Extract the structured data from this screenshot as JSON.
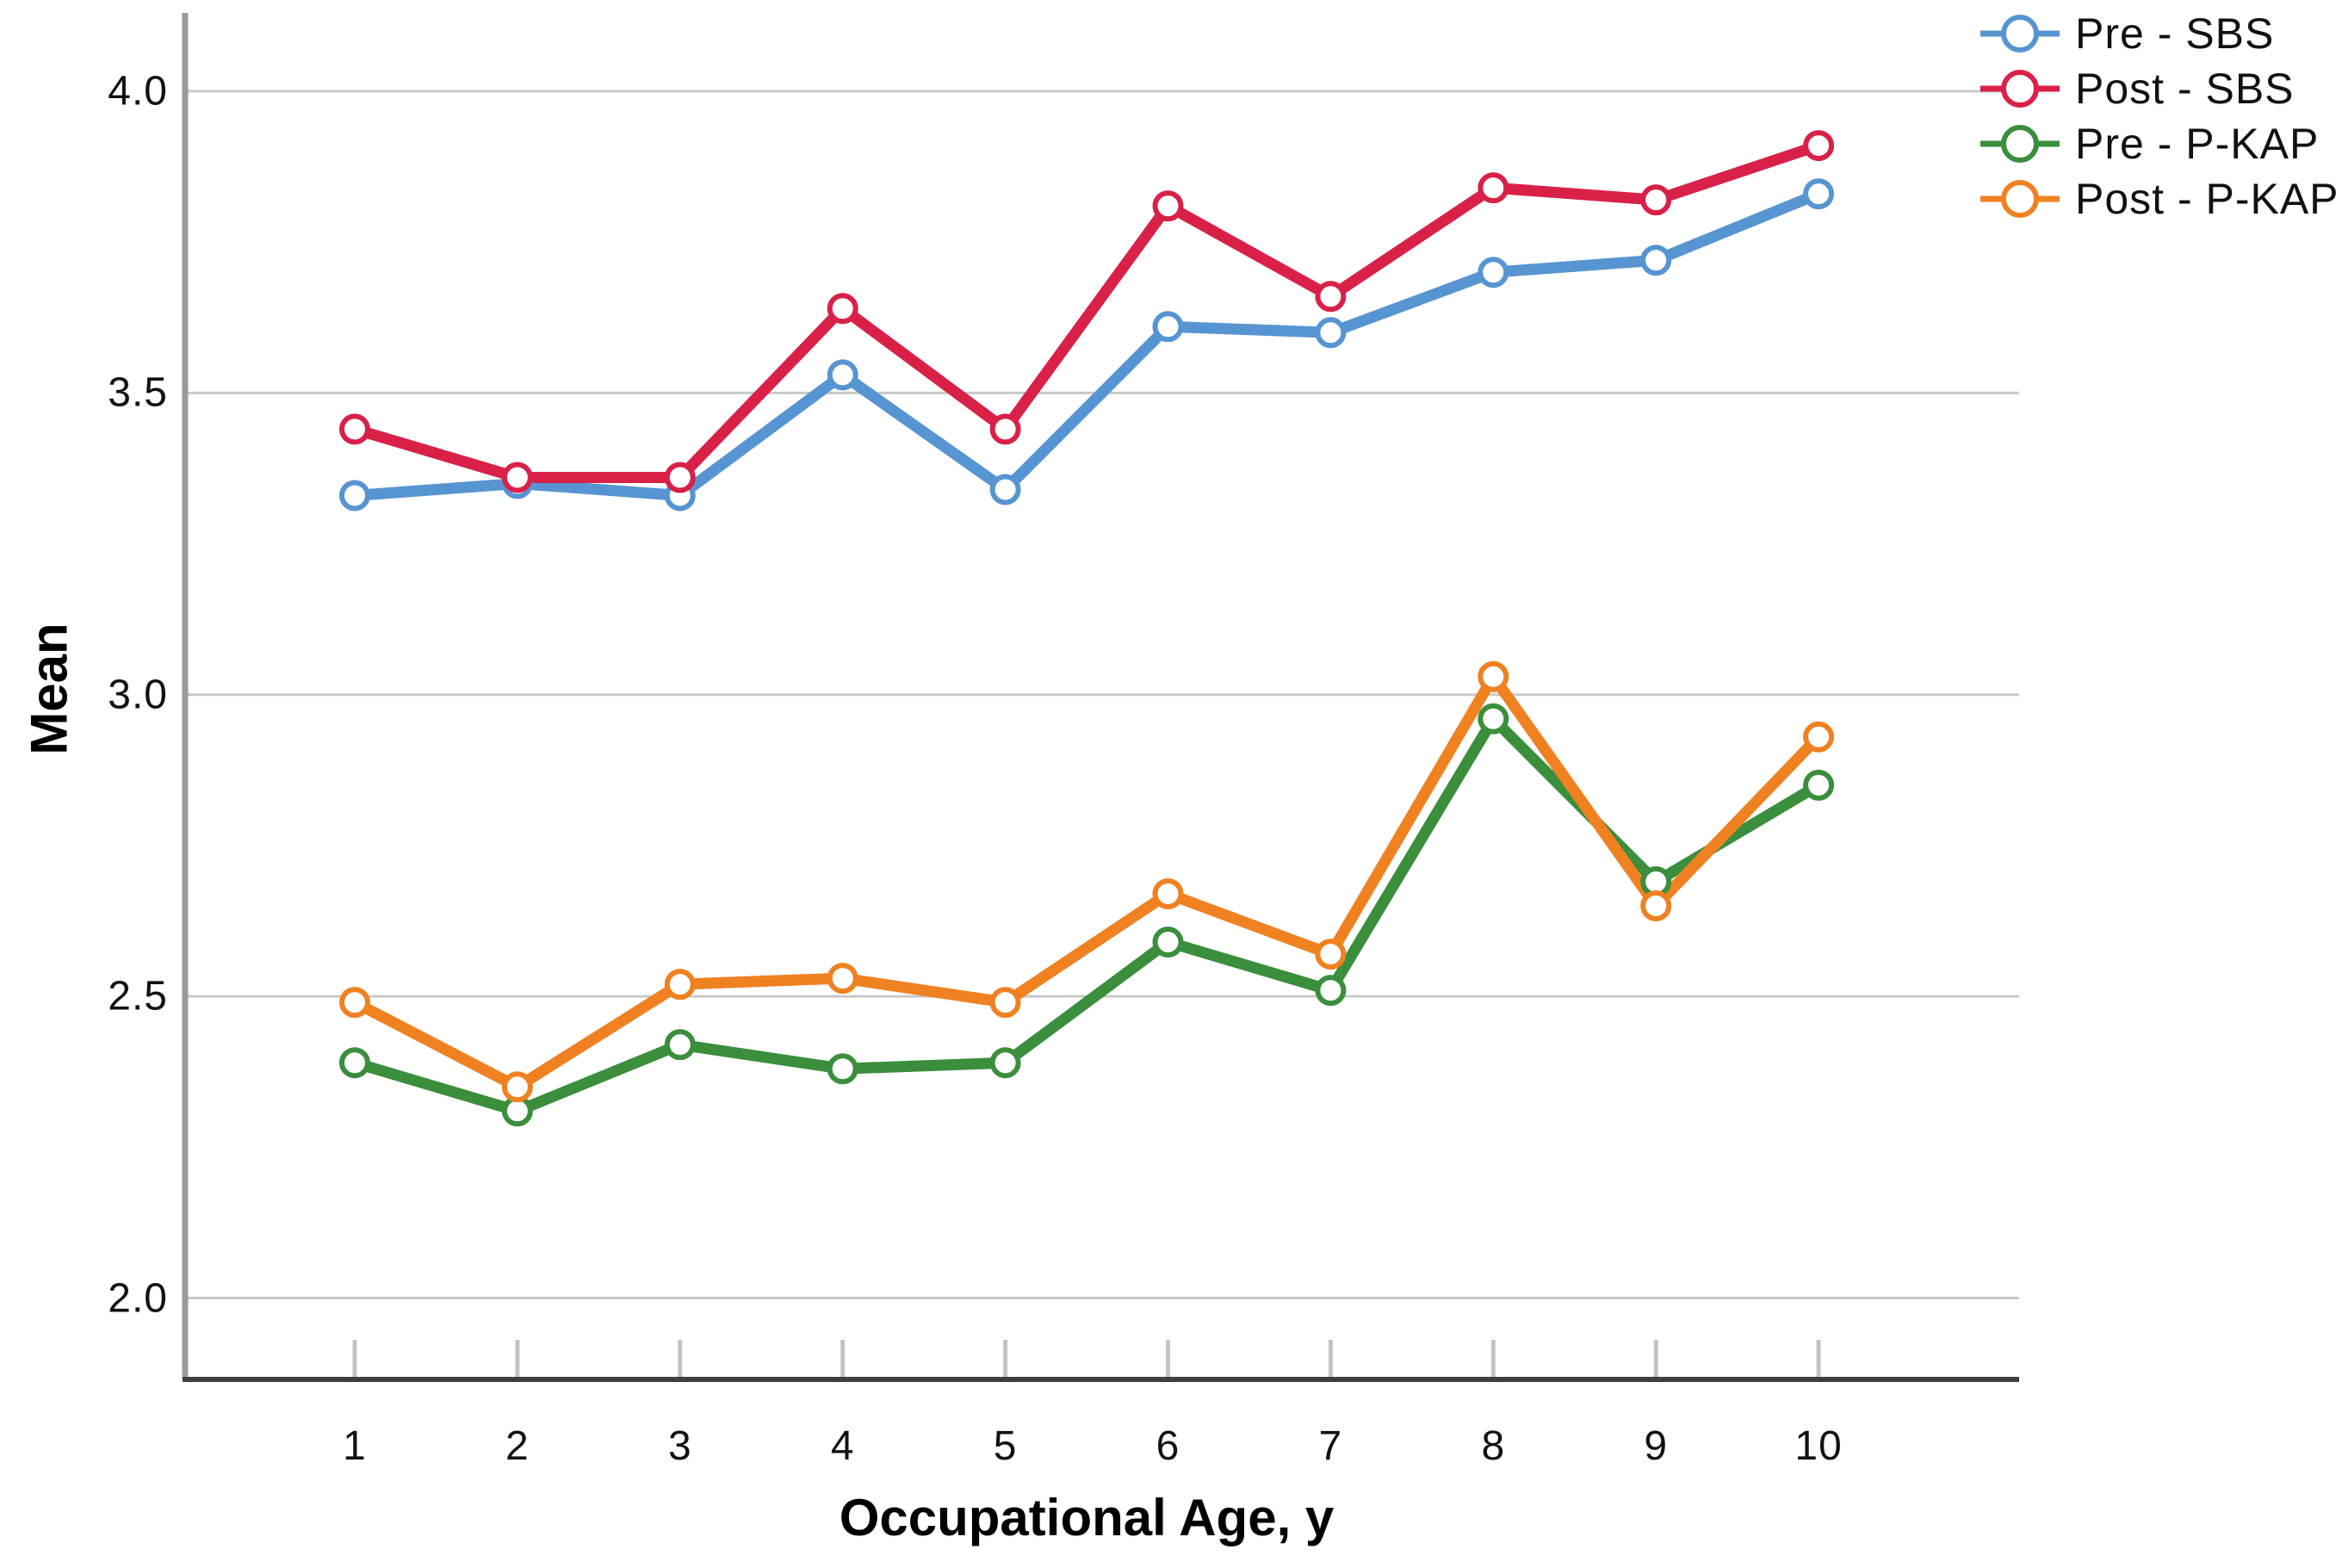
{
  "chart_data": {
    "type": "line",
    "title": "",
    "xlabel": "Occupational Age, y",
    "ylabel": "Mean",
    "x": [
      1,
      2,
      3,
      4,
      5,
      6,
      7,
      8,
      9,
      10
    ],
    "x_tick_labels": [
      "1",
      "2",
      "3",
      "4",
      "5",
      "6",
      "7",
      "8",
      "9",
      "10"
    ],
    "y_tick_labels": [
      "4.0",
      "3.5",
      "3.0",
      "2.5",
      "2.0"
    ],
    "y_gridlines": [
      4.0,
      3.5,
      3.0,
      2.5,
      2.0
    ],
    "ylim": [
      1.87,
      4.13
    ],
    "grid": "horizontal",
    "legend_position": "top-right",
    "marker": "open-circle",
    "series": [
      {
        "name": "Pre - SBS",
        "slug": "pre-sbs",
        "color": "#5794D2",
        "values": [
          3.33,
          3.35,
          3.33,
          3.53,
          3.34,
          3.61,
          3.6,
          3.7,
          3.72,
          3.83
        ]
      },
      {
        "name": "Post - SBS",
        "slug": "post-sbs",
        "color": "#D92148",
        "values": [
          3.44,
          3.36,
          3.36,
          3.64,
          3.44,
          3.81,
          3.66,
          3.84,
          3.82,
          3.91
        ]
      },
      {
        "name": "Pre - P-KAP",
        "slug": "pre-p-kap",
        "color": "#3A8E3C",
        "values": [
          2.39,
          2.31,
          2.42,
          2.38,
          2.39,
          2.59,
          2.51,
          2.96,
          2.69,
          2.85
        ]
      },
      {
        "name": "Post - P-KAP",
        "slug": "post-p-kap",
        "color": "#F08121",
        "values": [
          2.49,
          2.35,
          2.52,
          2.53,
          2.49,
          2.67,
          2.57,
          3.03,
          2.65,
          2.93
        ]
      }
    ],
    "style": {
      "gridline_color": "#C9C9C9",
      "y_axis_color": "#9A9A9A",
      "x_axis_color": "#3F3F3F",
      "tick_mark_color": "#C4C4C4",
      "marker_fill": "#FFFFFF",
      "text_color": "#111111"
    }
  }
}
